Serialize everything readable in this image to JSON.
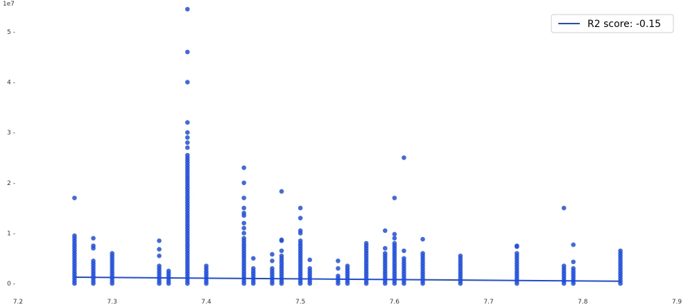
{
  "chart_data": {
    "type": "scatter",
    "title": "",
    "xlabel": "",
    "ylabel": "",
    "y_offset_label": "1e7",
    "xlim": [
      7.2,
      7.9
    ],
    "ylim": [
      -1500000,
      55500000
    ],
    "x_ticks": [
      7.2,
      7.3,
      7.4,
      7.5,
      7.6,
      7.7,
      7.8,
      7.9
    ],
    "x_tick_labels": [
      "7.2",
      "7.3",
      "7.4",
      "7.5",
      "7.6",
      "7.7",
      "7.8",
      "7.9"
    ],
    "y_ticks": [
      0,
      10000000,
      20000000,
      30000000,
      40000000,
      50000000
    ],
    "y_tick_labels": [
      "0 -",
      "1 -",
      "2 -",
      "3 -",
      "4 -",
      "5 -"
    ],
    "grid": false,
    "legend_position": "top-right",
    "point_color": "#1f4fe0",
    "line_color": "#1a4ae6",
    "scatter_columns": [
      {
        "x": 7.26,
        "max": 9500000,
        "extra": [
          17000000
        ]
      },
      {
        "x": 7.28,
        "max": 4800000,
        "extra": [
          7000000,
          7500000,
          9000000
        ]
      },
      {
        "x": 7.3,
        "max": 6000000,
        "extra": []
      },
      {
        "x": 7.35,
        "max": 3500000,
        "extra": [
          5500000,
          6800000,
          8500000
        ]
      },
      {
        "x": 7.36,
        "max": 2500000,
        "extra": []
      },
      {
        "x": 7.38,
        "max": 25500000,
        "extra": [
          27000000,
          28000000,
          29000000,
          30000000,
          32000000,
          40000000,
          46000000,
          54500000
        ]
      },
      {
        "x": 7.4,
        "max": 3500000,
        "extra": []
      },
      {
        "x": 7.44,
        "max": 9000000,
        "extra": [
          10000000,
          11000000,
          12000000,
          13500000,
          14000000,
          15000000,
          17000000,
          20000000,
          23000000
        ]
      },
      {
        "x": 7.45,
        "max": 3200000,
        "extra": [
          5000000
        ]
      },
      {
        "x": 7.47,
        "max": 3000000,
        "extra": [
          4500000,
          5800000
        ]
      },
      {
        "x": 7.48,
        "max": 5500000,
        "extra": [
          6500000,
          8500000,
          8700000,
          18300000
        ]
      },
      {
        "x": 7.5,
        "max": 8500000,
        "extra": [
          10000000,
          10500000,
          13000000,
          15000000
        ]
      },
      {
        "x": 7.51,
        "max": 3200000,
        "extra": [
          4700000
        ]
      },
      {
        "x": 7.54,
        "max": 1800000,
        "extra": [
          3000000,
          4500000
        ]
      },
      {
        "x": 7.55,
        "max": 3800000,
        "extra": []
      },
      {
        "x": 7.57,
        "max": 7500000,
        "extra": [
          8000000
        ]
      },
      {
        "x": 7.59,
        "max": 6000000,
        "extra": [
          7000000,
          10500000
        ]
      },
      {
        "x": 7.6,
        "max": 8000000,
        "extra": [
          9000000,
          9800000,
          17000000
        ]
      },
      {
        "x": 7.61,
        "max": 5000000,
        "extra": [
          6500000,
          25000000
        ]
      },
      {
        "x": 7.63,
        "max": 6000000,
        "extra": [
          8800000
        ]
      },
      {
        "x": 7.67,
        "max": 5500000,
        "extra": []
      },
      {
        "x": 7.73,
        "max": 6000000,
        "extra": [
          7300000,
          7500000
        ]
      },
      {
        "x": 7.78,
        "max": 3500000,
        "extra": [
          15000000
        ]
      },
      {
        "x": 7.79,
        "max": 3000000,
        "extra": [
          4300000,
          7700000
        ]
      },
      {
        "x": 7.84,
        "max": 6700000,
        "extra": []
      }
    ],
    "series": [
      {
        "name": "R2 score: -0.15",
        "type": "line",
        "x": [
          7.26,
          7.84
        ],
        "y": [
          1250000,
          450000
        ]
      }
    ]
  }
}
